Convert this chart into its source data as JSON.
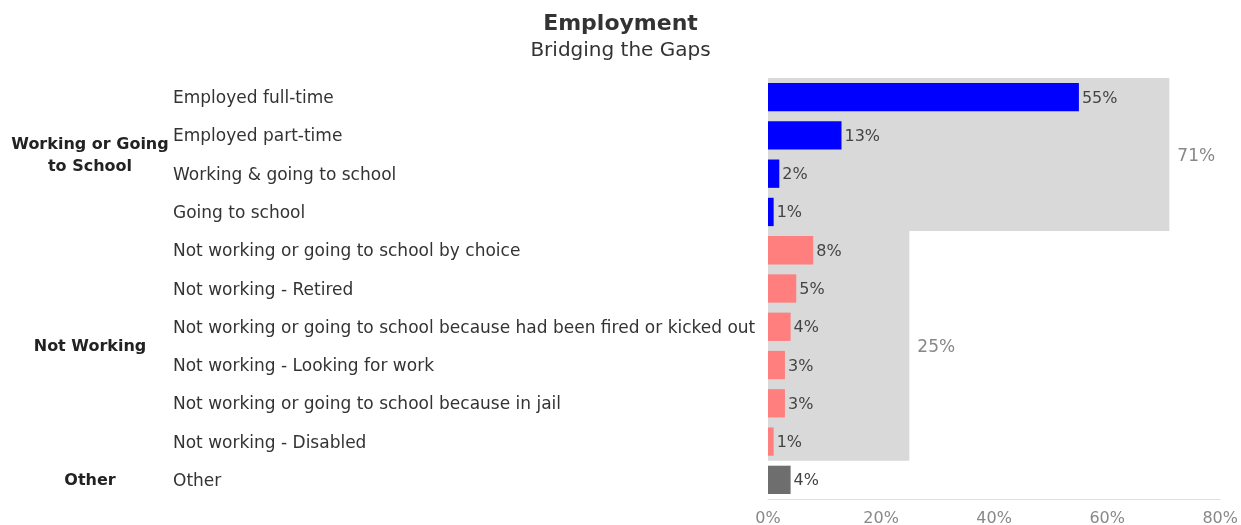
{
  "chart_data": {
    "type": "bar",
    "orientation": "horizontal",
    "title": "Employment",
    "subtitle": "Bridging the Gaps",
    "categories": [
      "Employed full-time",
      "Employed part-time",
      "Working & going to school",
      "Going to school",
      "Not working or going to school by choice",
      "Not working - Retired",
      "Not working or going to school because had been fired or kicked out",
      "Not working - Looking for work",
      "Not working or going to school because in jail",
      "Not working - Disabled",
      "Other"
    ],
    "series": [
      {
        "colors": [
          "#0000ff",
          "#0000ff",
          "#0000ff",
          "#0000ff",
          "#ff7f7f",
          "#ff7f7f",
          "#ff7f7f",
          "#ff7f7f",
          "#ff7f7f",
          "#ff7f7f",
          "#6e6e6e"
        ],
        "values": [
          55,
          13,
          2,
          1,
          8,
          5,
          4,
          3,
          3,
          1,
          4
        ],
        "value_labels": [
          "55%",
          "13%",
          "2%",
          "1%",
          "8%",
          "5%",
          "4%",
          "3%",
          "3%",
          "1%",
          "4%"
        ]
      }
    ],
    "bands": [
      {
        "axis": "x",
        "from": 0,
        "to": 71,
        "label": "71%",
        "color": "#d9d9d9"
      },
      {
        "axis": "x",
        "from": 0,
        "to": 25,
        "label": "25%",
        "color": "#d9d9d9"
      }
    ],
    "annotations": [
      "Working or Going\nto School",
      "Not Working",
      "Other"
    ],
    "xlim": [
      0,
      80
    ],
    "xticks": [
      {
        "value": 0,
        "label": "0%"
      },
      {
        "value": 20,
        "label": "20%"
      },
      {
        "value": 40,
        "label": "40%"
      },
      {
        "value": 60,
        "label": "60%"
      },
      {
        "value": 80,
        "label": "80%"
      }
    ],
    "grid": false
  }
}
